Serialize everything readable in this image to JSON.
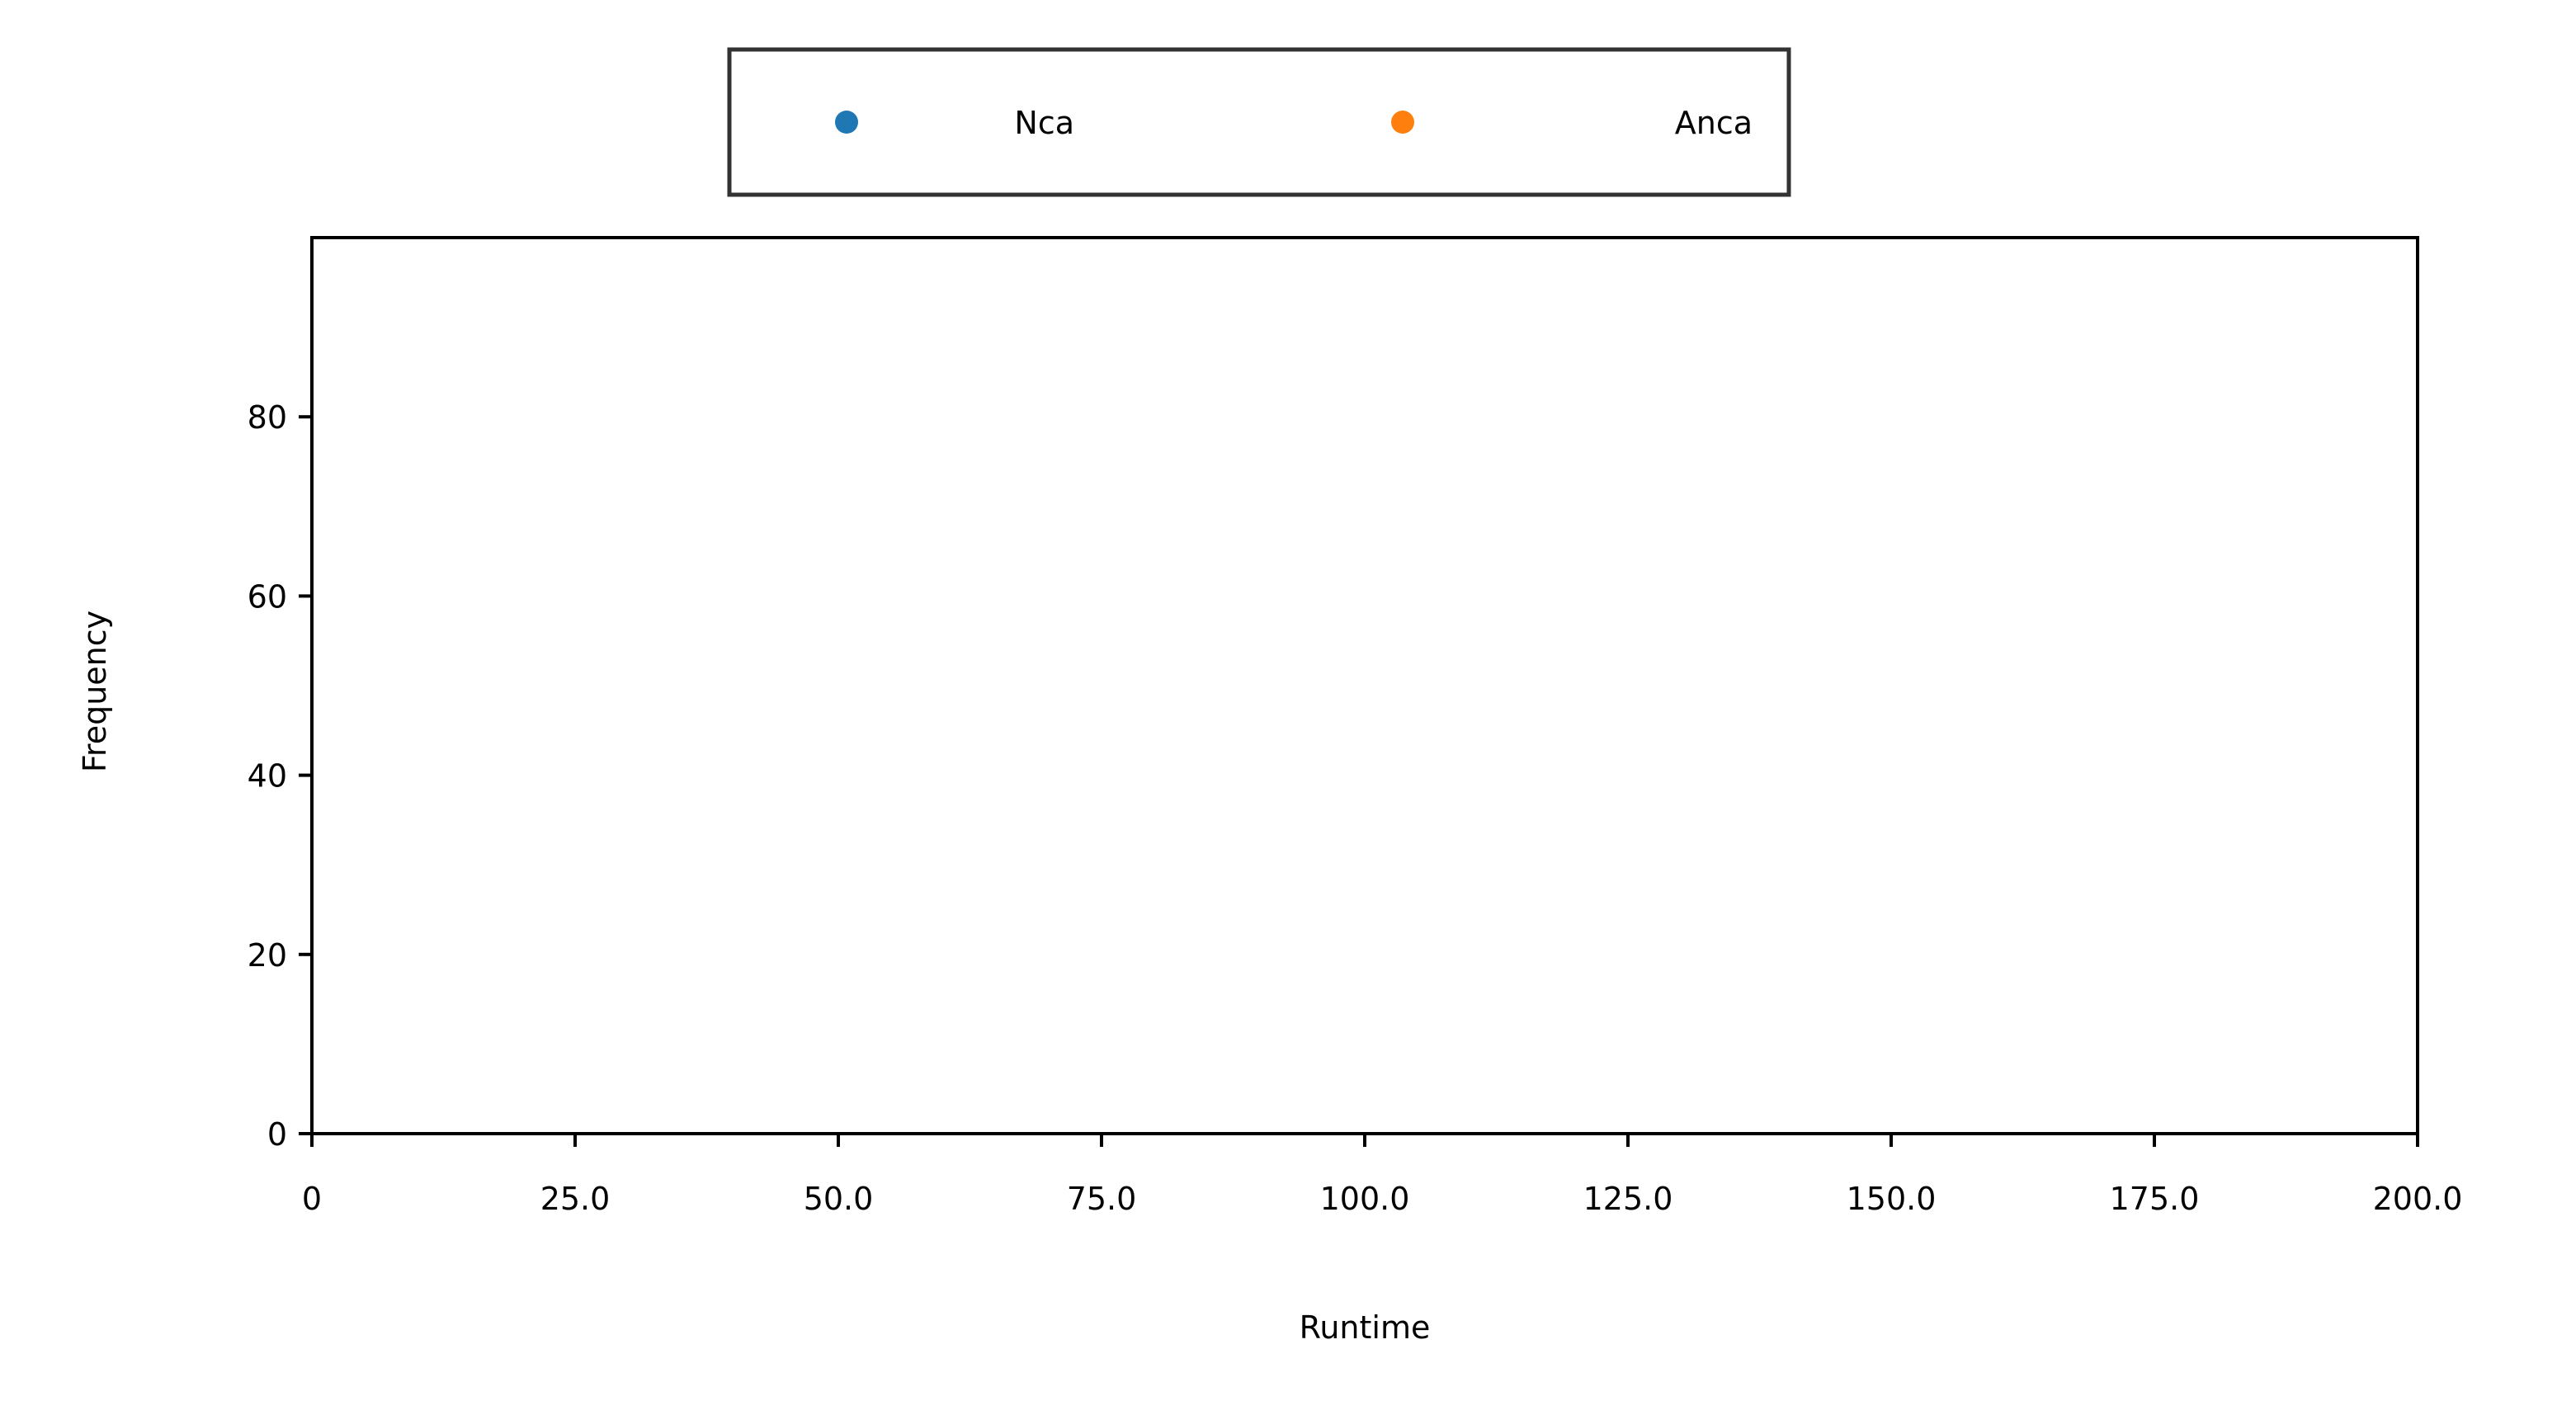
{
  "chart_data": {
    "type": "scatter",
    "title": "",
    "xlabel": "Runtime",
    "ylabel": "Frequency",
    "xlim": [
      0,
      200
    ],
    "ylim": [
      0,
      100
    ],
    "x_ticks": [
      0,
      25,
      50,
      75,
      100,
      125,
      150,
      175,
      200
    ],
    "x_tick_labels": [
      "0",
      "25.0",
      "50.0",
      "75.0",
      "100.0",
      "125.0",
      "150.0",
      "175.0",
      "200.0"
    ],
    "y_ticks": [
      0,
      20,
      40,
      60,
      80
    ],
    "y_tick_labels": [
      "0",
      "20",
      "40",
      "60",
      "80"
    ],
    "grid": false,
    "legend_position": "top-center",
    "series": [
      {
        "name": "Nca",
        "color": "#1f77b4",
        "points": []
      },
      {
        "name": "Anca",
        "color": "#ff7f0e",
        "points": []
      }
    ]
  }
}
